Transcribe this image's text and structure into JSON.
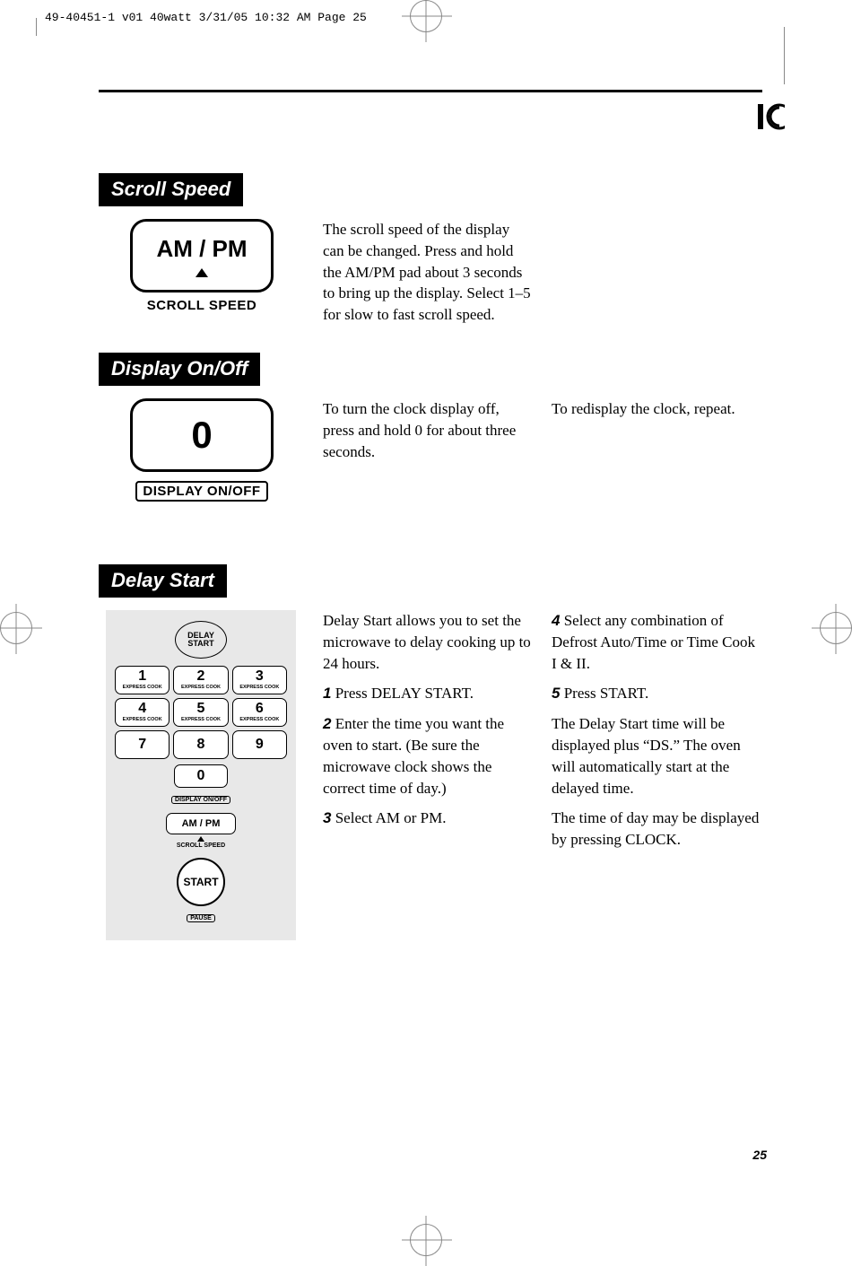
{
  "meta": {
    "header_line": "49-40451-1 v01 40watt  3/31/05  10:32 AM  Page 25",
    "page_number": "25"
  },
  "colors": {
    "panel_bg": "#e8e8e8",
    "black": "#000000"
  },
  "scroll_speed": {
    "title": "Scroll Speed",
    "button_label": "AM / PM",
    "under_label": "SCROLL SPEED",
    "body": "The scroll speed of the display can be changed. Press and hold the AM/PM pad about 3 seconds to bring up the display. Select 1–5 for slow to fast scroll speed."
  },
  "display_onoff": {
    "title": "Display On/Off",
    "button_label": "0",
    "under_label": "DISPLAY ON/OFF",
    "col1": "To turn the clock display off, press and hold 0 for about three seconds.",
    "col2": "To redisplay the clock, repeat."
  },
  "delay_start": {
    "title": "Delay Start",
    "oval_top": "DELAY",
    "oval_bottom": "START",
    "keys": [
      {
        "num": "1",
        "sub": "EXPRESS COOK"
      },
      {
        "num": "2",
        "sub": "EXPRESS COOK"
      },
      {
        "num": "3",
        "sub": "EXPRESS COOK"
      },
      {
        "num": "4",
        "sub": "EXPRESS COOK"
      },
      {
        "num": "5",
        "sub": "EXPRESS COOK"
      },
      {
        "num": "6",
        "sub": "EXPRESS COOK"
      },
      {
        "num": "7",
        "sub": ""
      },
      {
        "num": "8",
        "sub": ""
      },
      {
        "num": "9",
        "sub": ""
      }
    ],
    "zero": "0",
    "display_label": "DISPLAY ON/OFF",
    "ampm": "AM / PM",
    "scroll_label": "SCROLL SPEED",
    "start": "START",
    "pause": "PAUSE",
    "intro": "Delay Start allows you to set the microwave to delay cooking up to 24 hours.",
    "step1_n": "1",
    "step1_t": " Press DELAY START.",
    "step2_n": "2",
    "step2_t": " Enter the time you want the oven to start. (Be sure the microwave clock shows the correct time of day.)",
    "step3_n": "3",
    "step3_t": " Select AM or PM.",
    "step4_n": "4",
    "step4_t": " Select any combination of Defrost Auto/Time or Time Cook I & II.",
    "step5_n": "5",
    "step5_t": " Press START.",
    "tail1": "The Delay Start time will be displayed plus “DS.” The oven will automatically start at the delayed time.",
    "tail2": "The time of day may be displayed by pressing CLOCK."
  }
}
